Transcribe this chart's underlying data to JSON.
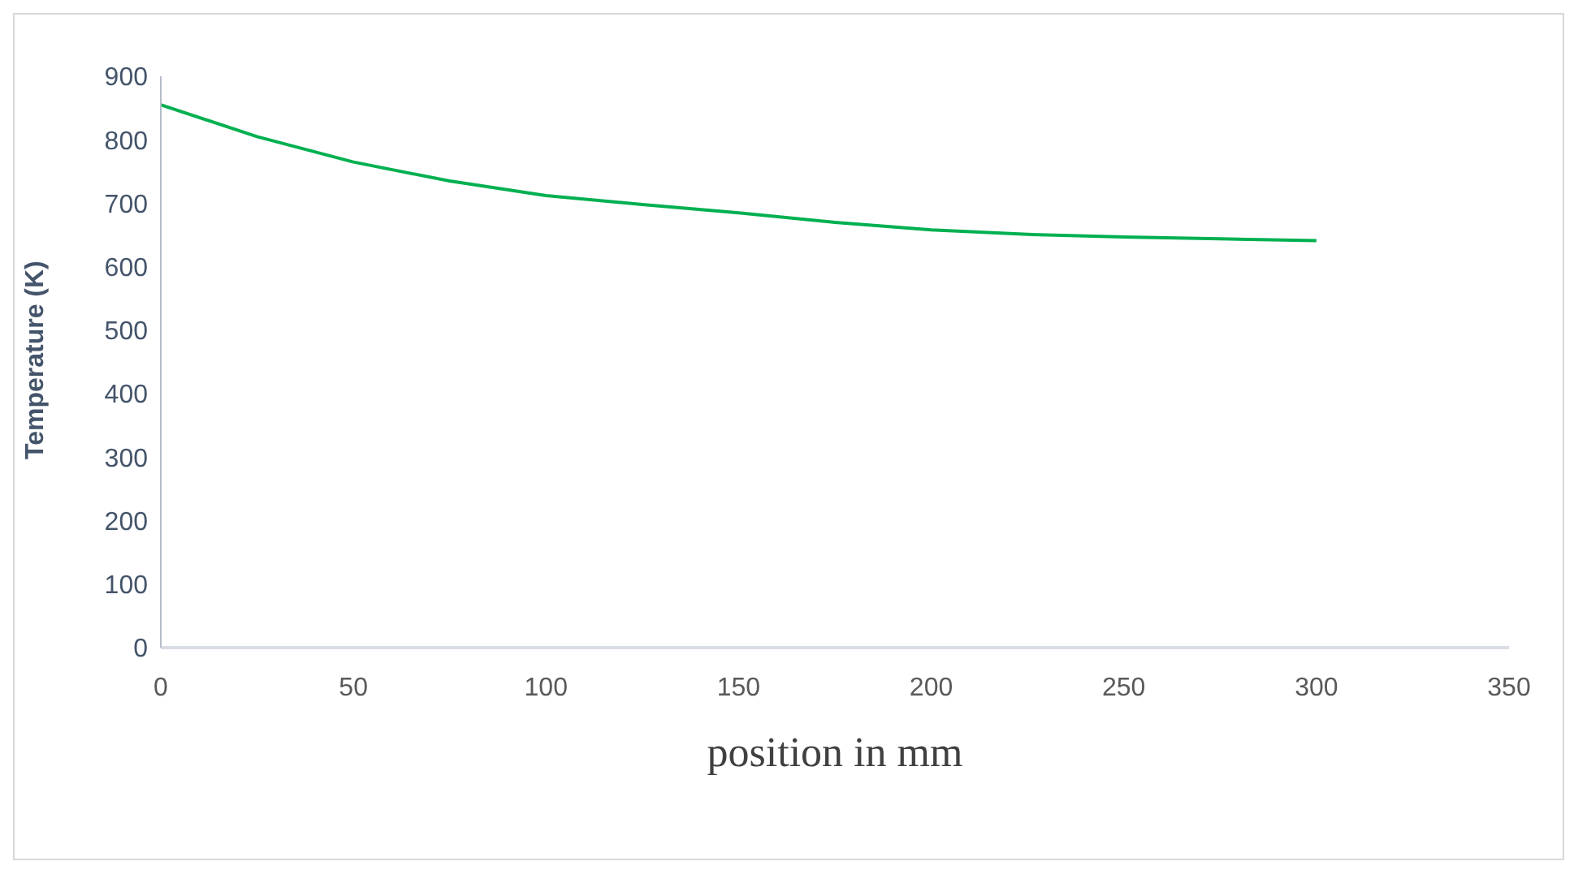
{
  "chart_data": {
    "type": "line",
    "xlabel": "position in mm",
    "ylabel": "Temperature (K)",
    "x": [
      0,
      25,
      50,
      75,
      100,
      125,
      150,
      175,
      200,
      225,
      250,
      275,
      300
    ],
    "series": [
      {
        "color": "#00b050",
        "values": [
          855,
          805,
          765,
          735,
          712,
          698,
          685,
          670,
          658,
          651,
          647,
          644,
          641
        ]
      }
    ],
    "xlim": [
      0,
      350
    ],
    "xticks": [
      0,
      50,
      100,
      150,
      200,
      250,
      300,
      350
    ],
    "ylim": [
      0,
      900
    ],
    "yticks": [
      0,
      100,
      200,
      300,
      400,
      500,
      600,
      700,
      800,
      900
    ],
    "grid": false,
    "legend": false,
    "marker": "none"
  }
}
